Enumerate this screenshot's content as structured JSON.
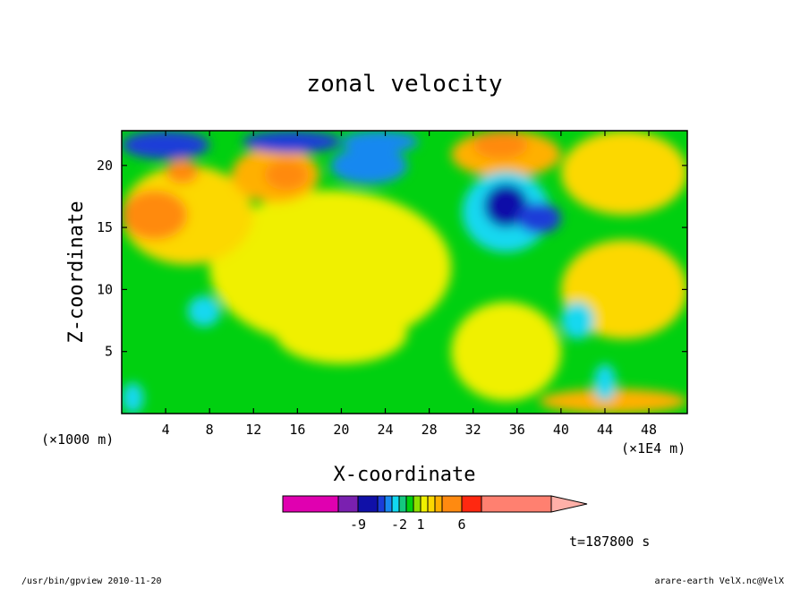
{
  "chart_data": {
    "type": "heatmap",
    "title": "zonal velocity",
    "xlabel": "X-coordinate",
    "ylabel": "Z-coordinate",
    "x_units_label": "(×1E4 m)",
    "y_units_label": "(×1000 m)",
    "xlim": [
      0,
      51.5
    ],
    "ylim": [
      0,
      22.8
    ],
    "x_ticks": [
      4,
      8,
      12,
      16,
      20,
      24,
      28,
      32,
      36,
      40,
      44,
      48
    ],
    "y_ticks": [
      5,
      10,
      15,
      20
    ],
    "colorbar": {
      "tick_labels": [
        {
          "text": "-9",
          "value": -9
        },
        {
          "text": "-2",
          "value": -2
        },
        {
          "text": "1",
          "value": 1
        },
        {
          "text": "6",
          "value": 6
        }
      ],
      "levels": [
        {
          "value": -20,
          "color": "#e000b0"
        },
        {
          "value": -12,
          "color": "#7a20b0"
        },
        {
          "value": -9,
          "color": "#1010a8"
        },
        {
          "value": -6,
          "color": "#1a3cd8"
        },
        {
          "value": -4,
          "color": "#1888f0"
        },
        {
          "value": -3,
          "color": "#12d8f0"
        },
        {
          "value": -2,
          "color": "#14c880"
        },
        {
          "value": -1,
          "color": "#00d010"
        },
        {
          "value": 0,
          "color": "#8ee000"
        },
        {
          "value": 1,
          "color": "#f0f000"
        },
        {
          "value": 2,
          "color": "#fcd800"
        },
        {
          "value": 3,
          "color": "#ffb000"
        },
        {
          "value": 4,
          "color": "#ff8a10"
        },
        {
          "value": 6,
          "color": "#ff2810"
        },
        {
          "value": 10,
          "color": "#ff8070"
        },
        {
          "value": 20,
          "color": "#ffb0a8"
        }
      ]
    },
    "field_regions": [
      {
        "x": [
          0,
          51.5
        ],
        "z": [
          0,
          22.8
        ],
        "value": -1
      },
      {
        "x": [
          8,
          30
        ],
        "z": [
          5.5,
          18
        ],
        "value": 1
      },
      {
        "x": [
          14,
          26
        ],
        "z": [
          4,
          9
        ],
        "value": 1
      },
      {
        "x": [
          30,
          40
        ],
        "z": [
          1,
          9
        ],
        "value": 1
      },
      {
        "x": [
          38,
          51.5
        ],
        "z": [
          0,
          2
        ],
        "value": 3
      },
      {
        "x": [
          40,
          51.5
        ],
        "z": [
          6,
          14
        ],
        "value": 2
      },
      {
        "x": [
          0,
          12
        ],
        "z": [
          12,
          20
        ],
        "value": 2
      },
      {
        "x": [
          0,
          6
        ],
        "z": [
          14,
          18
        ],
        "value": 4
      },
      {
        "x": [
          10,
          18
        ],
        "z": [
          17,
          21.5
        ],
        "value": 3
      },
      {
        "x": [
          13,
          17
        ],
        "z": [
          18,
          20.5
        ],
        "value": 4
      },
      {
        "x": [
          4,
          7
        ],
        "z": [
          18.5,
          20.5
        ],
        "value": 4
      },
      {
        "x": [
          30,
          40
        ],
        "z": [
          19,
          22.8
        ],
        "value": 3
      },
      {
        "x": [
          32,
          37
        ],
        "z": [
          20.5,
          22.8
        ],
        "value": 4
      },
      {
        "x": [
          40,
          51.5
        ],
        "z": [
          16,
          22.8
        ],
        "value": 2
      },
      {
        "x": [
          31,
          39
        ],
        "z": [
          13,
          19.5
        ],
        "value": -3
      },
      {
        "x": [
          33,
          37
        ],
        "z": [
          15,
          18.5
        ],
        "value": -9
      },
      {
        "x": [
          36,
          40
        ],
        "z": [
          14.5,
          17
        ],
        "value": -6
      },
      {
        "x": [
          19,
          26
        ],
        "z": [
          18.5,
          21.5
        ],
        "value": -4
      },
      {
        "x": [
          0,
          8
        ],
        "z": [
          20.5,
          22.8
        ],
        "value": -6
      },
      {
        "x": [
          11,
          20
        ],
        "z": [
          21,
          22.8
        ],
        "value": -6
      },
      {
        "x": [
          20,
          27
        ],
        "z": [
          21,
          22.8
        ],
        "value": -4
      },
      {
        "x": [
          0,
          2
        ],
        "z": [
          0,
          2.5
        ],
        "value": -3
      },
      {
        "x": [
          6,
          9
        ],
        "z": [
          7,
          9.5
        ],
        "value": -3
      },
      {
        "x": [
          40,
          43
        ],
        "z": [
          6,
          9
        ],
        "value": -3
      },
      {
        "x": [
          43,
          45
        ],
        "z": [
          1,
          4
        ],
        "value": -3
      }
    ]
  },
  "footer": {
    "time_label": "t=187800 s",
    "program_label": "/usr/bin/gpview  2010-11-20",
    "file_label": "arare-earth_VelX.nc@VelX"
  }
}
